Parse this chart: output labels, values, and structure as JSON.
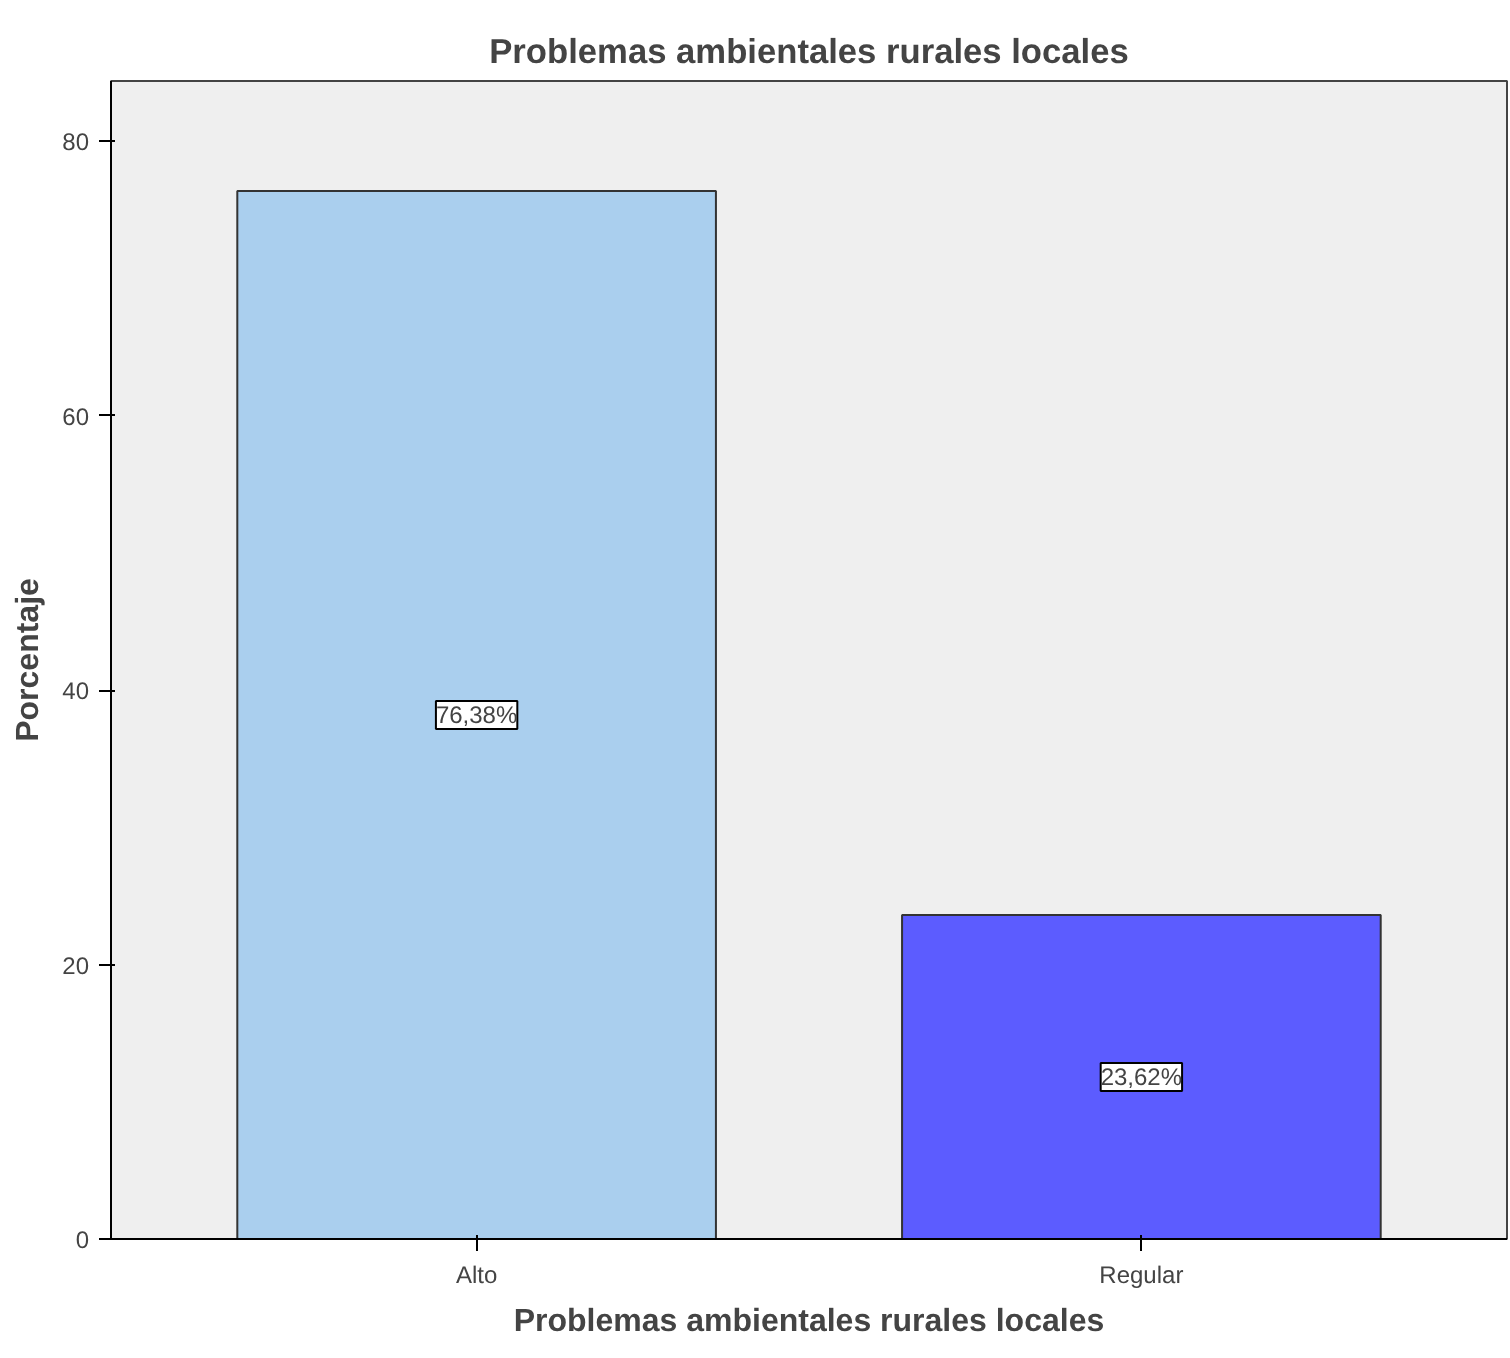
{
  "chart_data": {
    "type": "bar",
    "title": "Problemas ambientales rurales locales",
    "xlabel": "Problemas ambientales rurales locales",
    "ylabel": "Porcentaje",
    "categories": [
      "Alto",
      "Regular"
    ],
    "values": [
      76.38,
      23.62
    ],
    "colors": [
      "#aacfee",
      "#5c5cff"
    ],
    "value_labels": [
      "76,38%",
      "23,62%"
    ],
    "ylim": [
      0,
      84.4
    ],
    "yticks": [
      0,
      20,
      40,
      60,
      80
    ],
    "grid": false
  }
}
